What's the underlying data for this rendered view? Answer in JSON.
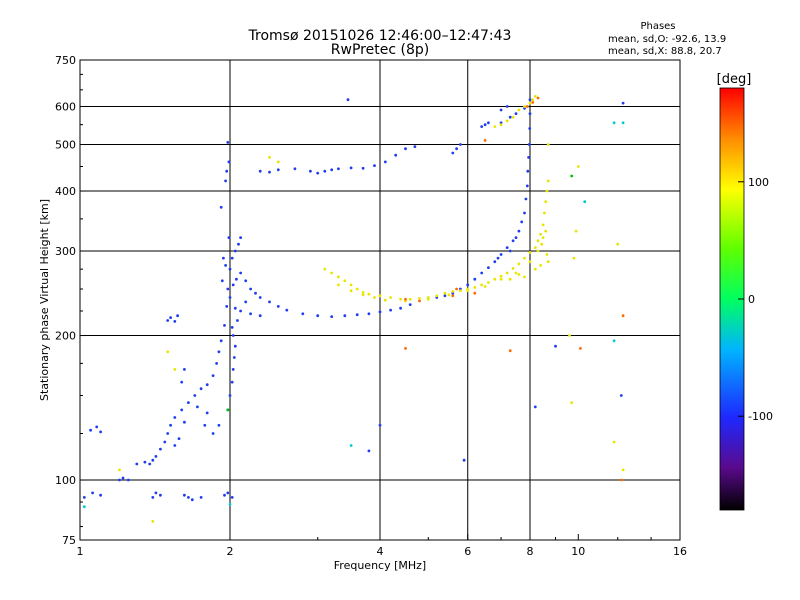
{
  "title_line1": "Tromsø 20151026 12:46:00–12:47:43",
  "title_line2": "RwPretec (8p)",
  "stats": {
    "heading": "Phases",
    "line1": "mean, sd,O: -92.6, 13.9",
    "line2": "mean, sd,X:  88.8, 20.7"
  },
  "colorbar": {
    "label": "[deg]",
    "ticks": [
      {
        "value": 100,
        "label": "100"
      },
      {
        "value": 0,
        "label": "0"
      },
      {
        "value": -100,
        "label": "-100"
      }
    ],
    "range": [
      -180,
      180
    ]
  },
  "chart_data": {
    "type": "scatter",
    "title": "Tromsø 20151026 12:46:00–12:47:43",
    "subtitle": "RwPretec (8p)",
    "xlabel": "Frequency [MHz]",
    "ylabel": "Stationary phase Virtual Height [km]",
    "xscale": "log",
    "yscale": "log",
    "xlim": [
      1,
      16
    ],
    "ylim": [
      75,
      750
    ],
    "x_ticks": [
      {
        "value": 1,
        "label": "1"
      },
      {
        "value": 2,
        "label": "2"
      },
      {
        "value": 4,
        "label": "4"
      },
      {
        "value": 6,
        "label": "6"
      },
      {
        "value": 8,
        "label": "8"
      },
      {
        "value": 10,
        "label": "10"
      },
      {
        "value": 16,
        "label": "16"
      }
    ],
    "y_ticks": [
      {
        "value": 75,
        "label": "75"
      },
      {
        "value": 100,
        "label": "100"
      },
      {
        "value": 200,
        "label": "200"
      },
      {
        "value": 300,
        "label": "300"
      },
      {
        "value": 400,
        "label": "400"
      },
      {
        "value": 500,
        "label": "500"
      },
      {
        "value": 600,
        "label": "600"
      },
      {
        "value": 750,
        "label": "750"
      }
    ],
    "grid_x": [
      2,
      4,
      6,
      8
    ],
    "grid_y": [
      100,
      200,
      300,
      400,
      500,
      600
    ],
    "series": [
      {
        "color": "#1f3cf0",
        "points": [
          [
            1.05,
            127
          ],
          [
            1.08,
            129
          ],
          [
            1.1,
            126
          ],
          [
            1.02,
            92
          ],
          [
            1.06,
            94
          ],
          [
            1.1,
            93
          ],
          [
            1.2,
            100
          ],
          [
            1.22,
            101
          ],
          [
            1.25,
            100
          ],
          [
            1.3,
            108
          ],
          [
            1.35,
            109
          ],
          [
            1.4,
            110
          ],
          [
            1.38,
            108
          ],
          [
            1.42,
            112
          ],
          [
            1.45,
            116
          ],
          [
            1.48,
            120
          ],
          [
            1.5,
            125
          ],
          [
            1.52,
            130
          ],
          [
            1.55,
            135
          ],
          [
            1.6,
            140
          ],
          [
            1.62,
            132
          ],
          [
            1.65,
            145
          ],
          [
            1.7,
            150
          ],
          [
            1.72,
            142
          ],
          [
            1.75,
            155
          ],
          [
            1.8,
            158
          ],
          [
            1.78,
            130
          ],
          [
            1.6,
            160
          ],
          [
            1.62,
            170
          ],
          [
            1.55,
            118
          ],
          [
            1.58,
            122
          ],
          [
            1.5,
            215
          ],
          [
            1.52,
            218
          ],
          [
            1.55,
            214
          ],
          [
            1.57,
            220
          ],
          [
            1.85,
            165
          ],
          [
            1.88,
            175
          ],
          [
            1.9,
            185
          ],
          [
            1.92,
            195
          ],
          [
            1.95,
            210
          ],
          [
            1.97,
            230
          ],
          [
            1.98,
            250
          ],
          [
            2.0,
            275
          ],
          [
            2.02,
            290
          ],
          [
            2.05,
            300
          ],
          [
            2.08,
            310
          ],
          [
            2.1,
            320
          ],
          [
            1.96,
            280
          ],
          [
            1.94,
            290
          ],
          [
            1.93,
            260
          ],
          [
            1.99,
            320
          ],
          [
            1.92,
            370
          ],
          [
            1.96,
            420
          ],
          [
            1.97,
            440
          ],
          [
            1.99,
            460
          ],
          [
            1.98,
            505
          ],
          [
            2.0,
            240
          ],
          [
            2.03,
            255
          ],
          [
            2.06,
            262
          ],
          [
            2.1,
            270
          ],
          [
            2.15,
            260
          ],
          [
            2.2,
            250
          ],
          [
            2.3,
            240
          ],
          [
            2.4,
            235
          ],
          [
            2.5,
            230
          ],
          [
            2.6,
            226
          ],
          [
            2.8,
            222
          ],
          [
            3.0,
            220
          ],
          [
            3.2,
            219
          ],
          [
            3.4,
            220
          ],
          [
            3.6,
            221
          ],
          [
            3.8,
            222
          ],
          [
            4.0,
            224
          ],
          [
            4.2,
            226
          ],
          [
            4.4,
            228
          ],
          [
            4.6,
            232
          ],
          [
            2.05,
            228
          ],
          [
            2.1,
            225
          ],
          [
            2.2,
            222
          ],
          [
            2.3,
            220
          ],
          [
            2.25,
            245
          ],
          [
            2.15,
            235
          ],
          [
            2.07,
            215
          ],
          [
            2.02,
            208
          ],
          [
            2.03,
            200
          ],
          [
            2.05,
            190
          ],
          [
            2.04,
            180
          ],
          [
            2.03,
            170
          ],
          [
            2.02,
            160
          ],
          [
            2.0,
            150
          ],
          [
            1.98,
            140
          ],
          [
            1.9,
            130
          ],
          [
            1.85,
            125
          ],
          [
            1.8,
            138
          ],
          [
            1.4,
            92
          ],
          [
            1.42,
            94
          ],
          [
            1.45,
            93
          ],
          [
            1.62,
            93
          ],
          [
            1.65,
            92
          ],
          [
            1.68,
            91
          ],
          [
            1.75,
            92
          ],
          [
            1.95,
            93
          ],
          [
            1.98,
            94
          ],
          [
            2.02,
            92
          ],
          [
            2.3,
            440
          ],
          [
            2.5,
            443
          ],
          [
            2.7,
            445
          ],
          [
            2.9,
            440
          ],
          [
            3.1,
            440
          ],
          [
            3.3,
            445
          ],
          [
            3.5,
            447
          ],
          [
            3.7,
            446
          ],
          [
            3.9,
            452
          ],
          [
            4.1,
            460
          ],
          [
            4.3,
            475
          ],
          [
            4.5,
            490
          ],
          [
            4.7,
            495
          ],
          [
            2.4,
            438
          ],
          [
            3.0,
            436
          ],
          [
            3.2,
            443
          ],
          [
            3.45,
            620
          ],
          [
            5.2,
            240
          ],
          [
            5.4,
            242
          ],
          [
            5.6,
            245
          ],
          [
            5.8,
            250
          ],
          [
            6.0,
            255
          ],
          [
            6.2,
            262
          ],
          [
            6.4,
            270
          ],
          [
            6.6,
            277
          ],
          [
            6.8,
            285
          ],
          [
            7.0,
            295
          ],
          [
            7.2,
            305
          ],
          [
            7.4,
            315
          ],
          [
            7.6,
            330
          ],
          [
            7.7,
            345
          ],
          [
            7.8,
            360
          ],
          [
            7.85,
            385
          ],
          [
            7.9,
            410
          ],
          [
            7.92,
            440
          ],
          [
            7.95,
            470
          ],
          [
            7.97,
            500
          ],
          [
            7.99,
            540
          ],
          [
            8.0,
            580
          ],
          [
            8.0,
            620
          ],
          [
            7.5,
            320
          ],
          [
            7.3,
            300
          ],
          [
            6.9,
            290
          ],
          [
            6.4,
            545
          ],
          [
            6.5,
            550
          ],
          [
            6.6,
            555
          ],
          [
            7.0,
            555
          ],
          [
            7.3,
            570
          ],
          [
            7.5,
            580
          ],
          [
            7.8,
            595
          ],
          [
            7.0,
            590
          ],
          [
            7.2,
            600
          ],
          [
            5.6,
            480
          ],
          [
            5.7,
            490
          ],
          [
            5.8,
            500
          ],
          [
            9.0,
            190
          ],
          [
            8.2,
            142
          ],
          [
            3.8,
            115
          ],
          [
            4.0,
            130
          ],
          [
            5.9,
            110
          ],
          [
            12.2,
            150
          ],
          [
            12.3,
            610
          ]
        ]
      },
      {
        "color": "#e6e600",
        "points": [
          [
            3.1,
            275
          ],
          [
            3.2,
            270
          ],
          [
            3.3,
            265
          ],
          [
            3.4,
            260
          ],
          [
            3.5,
            255
          ],
          [
            3.6,
            250
          ],
          [
            3.7,
            246
          ],
          [
            3.8,
            244
          ],
          [
            4.0,
            242
          ],
          [
            4.2,
            240
          ],
          [
            4.4,
            238
          ],
          [
            4.6,
            238
          ],
          [
            4.8,
            239
          ],
          [
            5.0,
            240
          ],
          [
            5.2,
            242
          ],
          [
            5.4,
            245
          ],
          [
            5.6,
            247
          ],
          [
            5.8,
            248
          ],
          [
            6.0,
            250
          ],
          [
            6.2,
            252
          ],
          [
            6.4,
            255
          ],
          [
            6.6,
            258
          ],
          [
            6.8,
            262
          ],
          [
            7.0,
            266
          ],
          [
            7.2,
            270
          ],
          [
            7.4,
            276
          ],
          [
            7.6,
            282
          ],
          [
            7.8,
            290
          ],
          [
            8.0,
            298
          ],
          [
            8.2,
            305
          ],
          [
            8.3,
            315
          ],
          [
            8.4,
            325
          ],
          [
            8.5,
            340
          ],
          [
            8.55,
            360
          ],
          [
            8.6,
            380
          ],
          [
            8.65,
            400
          ],
          [
            8.7,
            420
          ],
          [
            8.7,
            500
          ],
          [
            3.3,
            255
          ],
          [
            3.5,
            248
          ],
          [
            3.7,
            243
          ],
          [
            3.9,
            240
          ],
          [
            4.1,
            237
          ],
          [
            4.5,
            236
          ],
          [
            5.0,
            238
          ],
          [
            5.5,
            243
          ],
          [
            6.0,
            248
          ],
          [
            6.5,
            253
          ],
          [
            7.0,
            262
          ],
          [
            7.5,
            270
          ],
          [
            8.0,
            285
          ],
          [
            8.3,
            300
          ],
          [
            8.45,
            310
          ],
          [
            8.5,
            320
          ],
          [
            8.6,
            330
          ],
          [
            8.65,
            295
          ],
          [
            8.7,
            285
          ],
          [
            8.4,
            280
          ],
          [
            8.2,
            275
          ],
          [
            7.8,
            265
          ],
          [
            7.6,
            268
          ],
          [
            7.3,
            262
          ],
          [
            7.6,
            590
          ],
          [
            7.8,
            600
          ],
          [
            8.0,
            610
          ],
          [
            8.1,
            620
          ],
          [
            8.2,
            630
          ],
          [
            7.4,
            570
          ],
          [
            7.2,
            560
          ],
          [
            7.0,
            550
          ],
          [
            6.8,
            545
          ],
          [
            9.6,
            200
          ],
          [
            9.8,
            290
          ],
          [
            9.9,
            330
          ],
          [
            10.0,
            450
          ],
          [
            9.7,
            145
          ],
          [
            11.8,
            120
          ],
          [
            12.0,
            310
          ],
          [
            12.3,
            105
          ],
          [
            1.4,
            82
          ],
          [
            1.2,
            105
          ],
          [
            2.4,
            470
          ],
          [
            2.5,
            460
          ],
          [
            1.5,
            185
          ],
          [
            1.55,
            170
          ]
        ]
      },
      {
        "color": "#ff6a00",
        "points": [
          [
            4.5,
            238
          ],
          [
            4.8,
            236
          ],
          [
            5.6,
            242
          ],
          [
            5.7,
            250
          ],
          [
            6.2,
            245
          ],
          [
            7.9,
            600
          ],
          [
            8.1,
            612
          ],
          [
            8.3,
            625
          ],
          [
            6.5,
            510
          ],
          [
            4.5,
            188
          ],
          [
            7.3,
            186
          ],
          [
            12.2,
            100
          ],
          [
            12.3,
            220
          ],
          [
            10.1,
            188
          ]
        ]
      },
      {
        "color": "#00c8d2",
        "points": [
          [
            3.5,
            118
          ],
          [
            10.3,
            380
          ],
          [
            1.02,
            88
          ],
          [
            11.8,
            195
          ],
          [
            11.8,
            555
          ],
          [
            12.3,
            555
          ],
          [
            2.0,
            89
          ]
        ]
      },
      {
        "color": "#00c000",
        "points": [
          [
            9.7,
            430
          ],
          [
            1.98,
            140
          ]
        ]
      }
    ]
  }
}
